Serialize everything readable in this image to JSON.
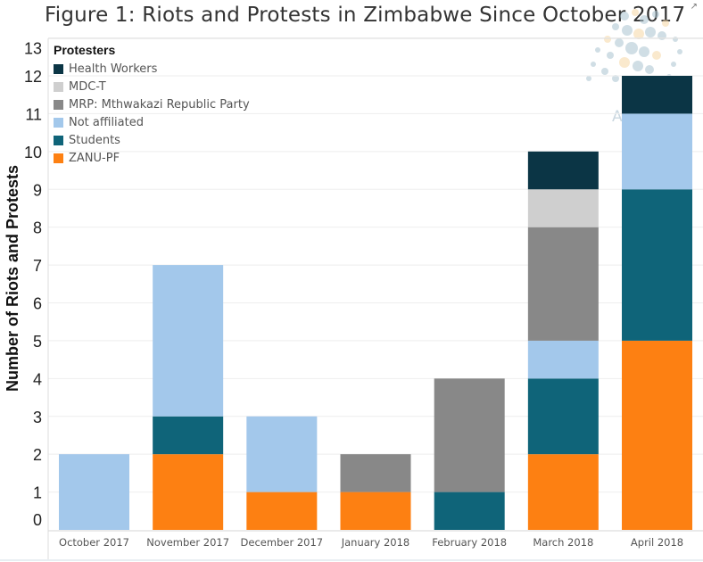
{
  "header": {
    "title": "Figure 1: Riots and Protests in Zimbabwe Since October 2017",
    "external_link_icon": "external-link-icon"
  },
  "watermark": {
    "text": "ACLED",
    "icon": "globe-dots-logo-icon"
  },
  "colors": {
    "Health Workers": "#0b3545",
    "MDC-T": "#cfcfcf",
    "MRP: Mthwakazi Republic Party": "#888888",
    "Not affiliated": "#a3c8eb",
    "Students": "#0f6479",
    "ZANU-PF": "#fd8012"
  },
  "legend": {
    "title": "Protesters",
    "items": [
      {
        "label": "Health Workers",
        "color": "#0b3545"
      },
      {
        "label": "MDC-T",
        "color": "#cfcfcf"
      },
      {
        "label": "MRP: Mthwakazi Republic Party",
        "color": "#888888"
      },
      {
        "label": "Not affiliated",
        "color": "#a3c8eb"
      },
      {
        "label": "Students",
        "color": "#0f6479"
      },
      {
        "label": "ZANU-PF",
        "color": "#fd8012"
      }
    ]
  },
  "chart_data": {
    "type": "bar",
    "stacked": true,
    "title": "Figure 1: Riots and Protests in Zimbabwe Since October 2017",
    "xlabel": "",
    "ylabel": "Number of Riots and Protests",
    "ylim": [
      0,
      13
    ],
    "yticks": [
      0,
      1,
      2,
      3,
      4,
      5,
      6,
      7,
      8,
      9,
      10,
      11,
      12,
      13
    ],
    "grid": true,
    "legend_title": "Protesters",
    "legend_position": "top-left",
    "categories": [
      "October 2017",
      "November 2017",
      "December 2017",
      "January 2018",
      "February 2018",
      "March 2018",
      "April 2018"
    ],
    "stack_order": [
      "ZANU-PF",
      "Students",
      "Not affiliated",
      "MRP: Mthwakazi Republic Party",
      "MDC-T",
      "Health Workers"
    ],
    "series": [
      {
        "name": "ZANU-PF",
        "values": [
          0,
          2,
          1,
          1,
          0,
          2,
          5
        ]
      },
      {
        "name": "Students",
        "values": [
          0,
          1,
          0,
          0,
          1,
          2,
          4
        ]
      },
      {
        "name": "Not affiliated",
        "values": [
          2,
          4,
          2,
          0,
          0,
          1,
          2
        ]
      },
      {
        "name": "MRP: Mthwakazi Republic Party",
        "values": [
          0,
          0,
          0,
          1,
          3,
          3,
          0
        ]
      },
      {
        "name": "MDC-T",
        "values": [
          0,
          0,
          0,
          0,
          0,
          1,
          0
        ]
      },
      {
        "name": "Health Workers",
        "values": [
          0,
          0,
          0,
          0,
          0,
          1,
          1
        ]
      }
    ],
    "totals": [
      2,
      7,
      3,
      2,
      4,
      10,
      12
    ]
  }
}
